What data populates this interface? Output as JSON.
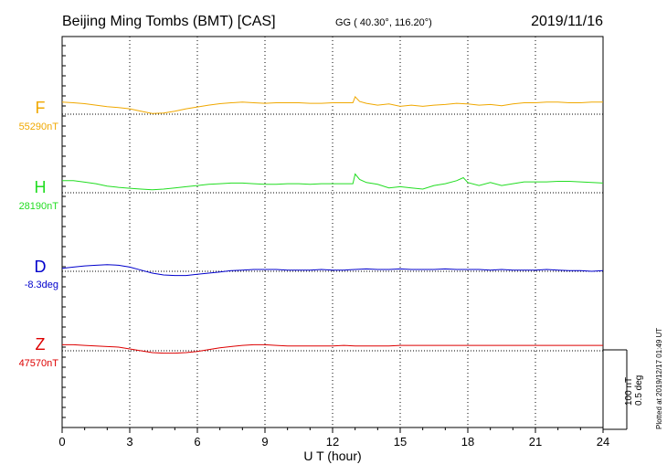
{
  "header": {
    "title": "Beijing Ming Tombs (BMT)  [CAS]",
    "coords": "GG ( 40.30°, 116.20°)",
    "date": "2019/11/16"
  },
  "footer": {
    "plotted": "Plotted at 2019/12/17 01:49 UT",
    "scale_nt": "100 nT",
    "scale_deg": "0.5 deg"
  },
  "chart_data": {
    "type": "line",
    "xlabel": "U T (hour)",
    "xlim": [
      0,
      24
    ],
    "xticks": [
      0,
      3,
      6,
      9,
      12,
      15,
      18,
      21,
      24
    ],
    "grid": "dotted vertical every 3 hours",
    "series": [
      {
        "name": "F",
        "baseline_label": "55290nT",
        "color": "#f0a800",
        "x": [
          0,
          0.5,
          1,
          1.5,
          2,
          2.5,
          3,
          3.5,
          4,
          4.5,
          5,
          5.5,
          6,
          6.5,
          7,
          7.5,
          8,
          8.5,
          9,
          9.5,
          10,
          10.5,
          11,
          11.5,
          12,
          12.5,
          12.9,
          13.0,
          13.2,
          13.5,
          14,
          14.5,
          15,
          15.5,
          16,
          16.5,
          17,
          17.5,
          18,
          18.5,
          19,
          19.5,
          20,
          20.5,
          21,
          21.5,
          22,
          22.5,
          23,
          23.5,
          24
        ],
        "y": [
          40,
          38,
          35,
          30,
          25,
          22,
          18,
          10,
          2,
          4,
          10,
          18,
          24,
          30,
          35,
          38,
          40,
          38,
          36,
          38,
          38,
          38,
          36,
          36,
          38,
          38,
          38,
          58,
          42,
          36,
          30,
          34,
          26,
          30,
          26,
          30,
          32,
          36,
          34,
          30,
          32,
          28,
          34,
          38,
          38,
          40,
          40,
          38,
          38,
          40,
          40
        ]
      },
      {
        "name": "H",
        "baseline_label": "28190nT",
        "color": "#22dd22",
        "x": [
          0,
          0.5,
          1,
          1.5,
          2,
          2.5,
          3,
          3.5,
          4,
          4.5,
          5,
          5.5,
          6,
          6.5,
          7,
          7.5,
          8,
          8.5,
          9,
          9.5,
          10,
          10.5,
          11,
          11.5,
          12,
          12.5,
          12.9,
          13.0,
          13.2,
          13.5,
          14,
          14.5,
          15,
          15.5,
          16,
          16.5,
          17,
          17.5,
          17.8,
          18,
          18.5,
          19,
          19.5,
          20,
          20.5,
          21,
          21.5,
          22,
          22.5,
          23,
          23.5,
          24
        ],
        "y": [
          40,
          40,
          35,
          30,
          22,
          18,
          15,
          12,
          10,
          12,
          16,
          20,
          24,
          28,
          30,
          32,
          32,
          30,
          28,
          28,
          30,
          30,
          28,
          30,
          30,
          30,
          30,
          62,
          44,
          34,
          28,
          16,
          20,
          16,
          12,
          24,
          30,
          40,
          50,
          34,
          24,
          34,
          24,
          30,
          36,
          36,
          36,
          38,
          38,
          36,
          34,
          32
        ]
      },
      {
        "name": "D",
        "baseline_label": "-8.3deg",
        "color": "#0000cc",
        "x": [
          0,
          0.5,
          1,
          1.5,
          2,
          2.5,
          3,
          3.5,
          4,
          4.5,
          5,
          5.5,
          6,
          6.5,
          7,
          7.5,
          8,
          8.5,
          9,
          9.5,
          10,
          10.5,
          11,
          11.5,
          12,
          12.5,
          13,
          13.5,
          14,
          14.5,
          15,
          15.5,
          16,
          16.5,
          17,
          17.5,
          18,
          18.5,
          19,
          19.5,
          20,
          20.5,
          21,
          21.5,
          22,
          22.5,
          23,
          23.5,
          24
        ],
        "y": [
          0.05,
          0.07,
          0.09,
          0.1,
          0.11,
          0.1,
          0.07,
          0.02,
          -0.03,
          -0.06,
          -0.07,
          -0.07,
          -0.05,
          -0.03,
          -0.01,
          0.01,
          0.02,
          0.03,
          0.03,
          0.03,
          0.02,
          0.02,
          0.02,
          0.03,
          0.02,
          0.02,
          0.03,
          0.04,
          0.03,
          0.03,
          0.04,
          0.03,
          0.03,
          0.03,
          0.04,
          0.03,
          0.03,
          0.03,
          0.02,
          0.03,
          0.02,
          0.02,
          0.02,
          0.03,
          0.02,
          0.01,
          0.01,
          0.0,
          0.01
        ]
      },
      {
        "name": "Z",
        "baseline_label": "47570nT",
        "color": "#dd0000",
        "x": [
          0,
          0.5,
          1,
          1.5,
          2,
          2.5,
          3,
          3.5,
          4,
          4.5,
          5,
          5.5,
          6,
          6.5,
          7,
          7.5,
          8,
          8.5,
          9,
          9.5,
          10,
          10.5,
          11,
          11.5,
          12,
          12.5,
          13,
          13.5,
          14,
          14.5,
          15,
          15.5,
          16,
          16.5,
          17,
          17.5,
          18,
          18.5,
          19,
          19.5,
          20,
          20.5,
          21,
          21.5,
          22,
          22.5,
          23,
          23.5,
          24
        ],
        "y": [
          20,
          20,
          18,
          16,
          14,
          12,
          6,
          0,
          -6,
          -8,
          -8,
          -6,
          -2,
          4,
          10,
          14,
          18,
          20,
          20,
          18,
          16,
          16,
          16,
          16,
          16,
          18,
          16,
          16,
          16,
          16,
          18,
          18,
          18,
          18,
          18,
          18,
          18,
          18,
          18,
          18,
          18,
          18,
          18,
          18,
          18,
          18,
          18,
          18,
          18
        ]
      }
    ]
  }
}
